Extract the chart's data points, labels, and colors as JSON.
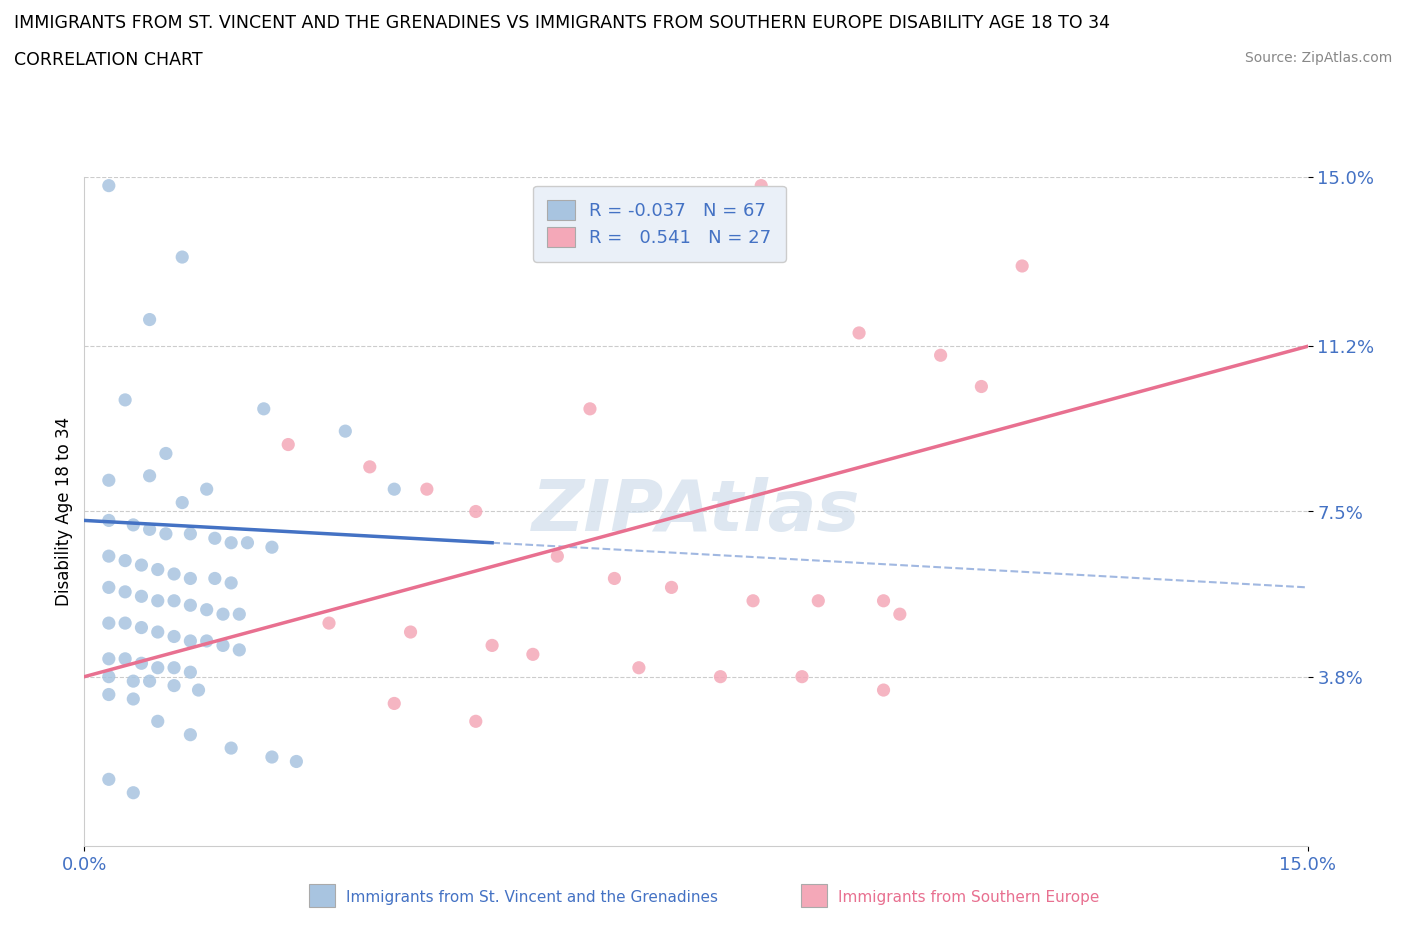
{
  "title": "IMMIGRANTS FROM ST. VINCENT AND THE GRENADINES VS IMMIGRANTS FROM SOUTHERN EUROPE DISABILITY AGE 18 TO 34",
  "subtitle": "CORRELATION CHART",
  "source": "Source: ZipAtlas.com",
  "ylabel": "Disability Age 18 to 34",
  "xlim": [
    0.0,
    0.15
  ],
  "ylim": [
    0.0,
    0.15
  ],
  "yticks": [
    0.038,
    0.075,
    0.112,
    0.15
  ],
  "ytick_labels": [
    "3.8%",
    "7.5%",
    "11.2%",
    "15.0%"
  ],
  "xtick_labels": [
    "0.0%",
    "15.0%"
  ],
  "xticks": [
    0.0,
    0.15
  ],
  "blue_r": -0.037,
  "blue_n": 67,
  "pink_r": 0.541,
  "pink_n": 27,
  "blue_scatter": [
    [
      0.003,
      0.148
    ],
    [
      0.012,
      0.132
    ],
    [
      0.008,
      0.118
    ],
    [
      0.005,
      0.1
    ],
    [
      0.022,
      0.098
    ],
    [
      0.032,
      0.093
    ],
    [
      0.01,
      0.088
    ],
    [
      0.008,
      0.083
    ],
    [
      0.003,
      0.082
    ],
    [
      0.015,
      0.08
    ],
    [
      0.038,
      0.08
    ],
    [
      0.012,
      0.077
    ],
    [
      0.003,
      0.073
    ],
    [
      0.006,
      0.072
    ],
    [
      0.008,
      0.071
    ],
    [
      0.01,
      0.07
    ],
    [
      0.013,
      0.07
    ],
    [
      0.016,
      0.069
    ],
    [
      0.018,
      0.068
    ],
    [
      0.02,
      0.068
    ],
    [
      0.023,
      0.067
    ],
    [
      0.003,
      0.065
    ],
    [
      0.005,
      0.064
    ],
    [
      0.007,
      0.063
    ],
    [
      0.009,
      0.062
    ],
    [
      0.011,
      0.061
    ],
    [
      0.013,
      0.06
    ],
    [
      0.016,
      0.06
    ],
    [
      0.018,
      0.059
    ],
    [
      0.003,
      0.058
    ],
    [
      0.005,
      0.057
    ],
    [
      0.007,
      0.056
    ],
    [
      0.009,
      0.055
    ],
    [
      0.011,
      0.055
    ],
    [
      0.013,
      0.054
    ],
    [
      0.015,
      0.053
    ],
    [
      0.017,
      0.052
    ],
    [
      0.019,
      0.052
    ],
    [
      0.003,
      0.05
    ],
    [
      0.005,
      0.05
    ],
    [
      0.007,
      0.049
    ],
    [
      0.009,
      0.048
    ],
    [
      0.011,
      0.047
    ],
    [
      0.013,
      0.046
    ],
    [
      0.015,
      0.046
    ],
    [
      0.017,
      0.045
    ],
    [
      0.019,
      0.044
    ],
    [
      0.003,
      0.042
    ],
    [
      0.005,
      0.042
    ],
    [
      0.007,
      0.041
    ],
    [
      0.009,
      0.04
    ],
    [
      0.011,
      0.04
    ],
    [
      0.013,
      0.039
    ],
    [
      0.003,
      0.038
    ],
    [
      0.006,
      0.037
    ],
    [
      0.008,
      0.037
    ],
    [
      0.011,
      0.036
    ],
    [
      0.014,
      0.035
    ],
    [
      0.003,
      0.034
    ],
    [
      0.006,
      0.033
    ],
    [
      0.009,
      0.028
    ],
    [
      0.013,
      0.025
    ],
    [
      0.018,
      0.022
    ],
    [
      0.023,
      0.02
    ],
    [
      0.026,
      0.019
    ],
    [
      0.003,
      0.015
    ],
    [
      0.006,
      0.012
    ]
  ],
  "pink_scatter": [
    [
      0.083,
      0.148
    ],
    [
      0.115,
      0.13
    ],
    [
      0.095,
      0.115
    ],
    [
      0.105,
      0.11
    ],
    [
      0.11,
      0.103
    ],
    [
      0.062,
      0.098
    ],
    [
      0.025,
      0.09
    ],
    [
      0.035,
      0.085
    ],
    [
      0.042,
      0.08
    ],
    [
      0.048,
      0.075
    ],
    [
      0.058,
      0.065
    ],
    [
      0.065,
      0.06
    ],
    [
      0.072,
      0.058
    ],
    [
      0.082,
      0.055
    ],
    [
      0.09,
      0.055
    ],
    [
      0.098,
      0.055
    ],
    [
      0.1,
      0.052
    ],
    [
      0.03,
      0.05
    ],
    [
      0.04,
      0.048
    ],
    [
      0.05,
      0.045
    ],
    [
      0.055,
      0.043
    ],
    [
      0.068,
      0.04
    ],
    [
      0.078,
      0.038
    ],
    [
      0.088,
      0.038
    ],
    [
      0.098,
      0.035
    ],
    [
      0.038,
      0.032
    ],
    [
      0.048,
      0.028
    ]
  ],
  "blue_color": "#a8c4e0",
  "pink_color": "#f4a8b8",
  "blue_line_color": "#4472c4",
  "pink_line_color": "#e87090",
  "watermark": "ZIPAtlas",
  "legend_box_color": "#eaf0f8",
  "grid_color": "#cccccc",
  "text_blue_color": "#4472c4",
  "blue_line_x": [
    0.0,
    0.05
  ],
  "pink_line_x": [
    0.0,
    0.15
  ],
  "blue_line_y_start": 0.073,
  "blue_line_y_end": 0.068,
  "pink_line_y_start": 0.038,
  "pink_line_y_end": 0.112
}
